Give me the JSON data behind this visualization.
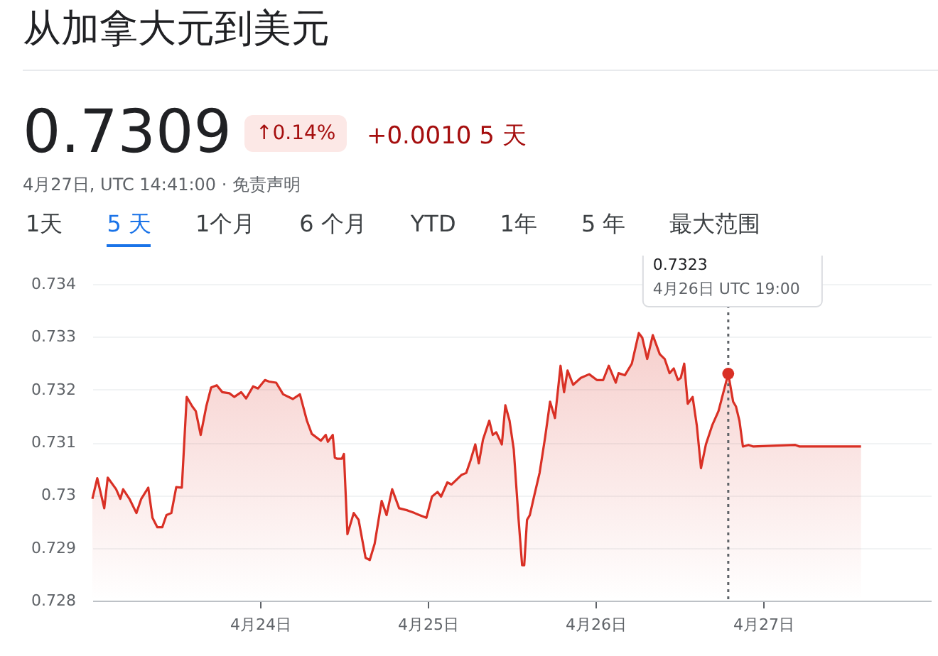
{
  "chart_data": {
    "type": "area",
    "title": "从加拿大元到美元",
    "x": [
      "--04-23T00:00",
      "--04-23T00:42",
      "--04-23T01:42",
      "--04-23T02:12",
      "--04-23T03:24",
      "--04-23T04:00",
      "--04-23T04:24",
      "--04-23T05:18",
      "--04-23T06:18",
      "--04-23T07:00",
      "--04-23T08:00",
      "--04-23T08:36",
      "--04-23T09:18",
      "--04-23T10:00",
      "--04-23T10:36",
      "--04-23T11:18",
      "--04-23T12:00",
      "--04-23T12:48",
      "--04-23T13:30",
      "--04-23T14:18",
      "--04-23T14:48",
      "--04-23T15:30",
      "--04-23T16:18",
      "--04-23T17:00",
      "--04-23T17:48",
      "--04-23T18:36",
      "--04-23T19:36",
      "--04-23T20:18",
      "--04-23T21:18",
      "--04-23T22:00",
      "--04-23T23:00",
      "--04-23T23:42",
      "--04-24T00:42",
      "--04-24T01:18",
      "--04-24T02:18",
      "--04-24T03:18",
      "--04-24T04:42",
      "--04-24T05:42",
      "--04-24T06:42",
      "--04-24T07:24",
      "--04-24T08:42",
      "--04-24T09:24",
      "--04-24T09:42",
      "--04-24T10:24",
      "--04-24T10:42",
      "--04-24T11:00",
      "--04-24T11:42",
      "--04-24T12:00",
      "--04-24T12:30",
      "--04-24T13:24",
      "--04-24T14:06",
      "--04-24T15:06",
      "--04-24T15:42",
      "--04-24T16:24",
      "--04-24T17:24",
      "--04-24T18:06",
      "--04-24T18:54",
      "--04-24T19:54",
      "--04-24T21:06",
      "--04-24T22:06",
      "--04-24T22:48",
      "--04-24T23:48",
      "--04-25T00:36",
      "--04-25T01:24",
      "--04-25T01:54",
      "--04-25T02:48",
      "--04-25T03:24",
      "--04-25T04:06",
      "--04-25T04:48",
      "--04-25T05:30",
      "--04-25T06:06",
      "--04-25T06:48",
      "--04-25T07:18",
      "--04-25T07:54",
      "--04-25T08:48",
      "--04-25T09:18",
      "--04-25T09:48",
      "--04-25T10:36",
      "--04-25T11:06",
      "--04-25T11:42",
      "--04-25T12:18",
      "--04-25T13:00",
      "--04-25T13:30",
      "--04-25T13:48",
      "--04-25T14:12",
      "--04-25T14:36",
      "--04-25T15:12",
      "--04-25T16:00",
      "--04-25T16:48",
      "--04-25T17:30",
      "--04-25T18:12",
      "--04-25T19:00",
      "--04-25T19:30",
      "--04-25T20:00",
      "--04-25T20:48",
      "--04-25T21:54",
      "--04-25T23:06",
      "--04-26T00:12",
      "--04-26T01:06",
      "--04-26T01:54",
      "--04-26T02:54",
      "--04-26T03:18",
      "--04-26T04:12",
      "--04-26T05:12",
      "--04-26T06:12",
      "--04-26T06:42",
      "--04-26T07:24",
      "--04-26T08:12",
      "--04-26T09:12",
      "--04-26T09:54",
      "--04-26T10:36",
      "--04-26T11:12",
      "--04-26T11:48",
      "--04-26T12:12",
      "--04-26T12:42",
      "--04-26T13:12",
      "--04-26T13:54",
      "--04-26T14:30",
      "--04-26T15:06",
      "--04-26T15:48",
      "--04-26T16:42",
      "--04-26T17:36",
      "--04-26T19:00",
      "--04-26T19:42",
      "--04-26T20:06",
      "--04-26T20:36",
      "--04-26T21:06",
      "--04-26T21:54",
      "--04-26T22:36",
      "--04-27T04:36",
      "--04-27T05:12",
      "--04-27T14:00"
    ],
    "series": [
      {
        "color": "#d93025",
        "values": [
          0.72993,
          0.73032,
          0.72975,
          0.73033,
          0.73011,
          0.72993,
          0.73011,
          0.72993,
          0.72966,
          0.72993,
          0.73014,
          0.72957,
          0.72939,
          0.72939,
          0.72962,
          0.72966,
          0.73015,
          0.73014,
          0.73186,
          0.73168,
          0.73159,
          0.73114,
          0.73168,
          0.73204,
          0.73208,
          0.73195,
          0.73193,
          0.73186,
          0.73195,
          0.73183,
          0.73206,
          0.73202,
          0.73218,
          0.73215,
          0.73213,
          0.73191,
          0.73182,
          0.73191,
          0.73141,
          0.73116,
          0.73103,
          0.73114,
          0.73101,
          0.73114,
          0.73071,
          0.73069,
          0.73069,
          0.73078,
          0.72926,
          0.72966,
          0.72953,
          0.72881,
          0.72877,
          0.72908,
          0.72989,
          0.72962,
          0.73011,
          0.72975,
          0.72971,
          0.72966,
          0.72962,
          0.72957,
          0.72997,
          0.73006,
          0.72997,
          0.73024,
          0.7302,
          0.73029,
          0.73038,
          0.73042,
          0.73065,
          0.73096,
          0.7306,
          0.73105,
          0.73141,
          0.73114,
          0.73119,
          0.73096,
          0.7317,
          0.73141,
          0.73087,
          0.72953,
          0.72867,
          0.72867,
          0.72953,
          0.72962,
          0.72997,
          0.73042,
          0.7311,
          0.73177,
          0.73146,
          0.73245,
          0.73195,
          0.73236,
          0.73209,
          0.73222,
          0.73229,
          0.73218,
          0.73218,
          0.73245,
          0.73213,
          0.73231,
          0.73227,
          0.73249,
          0.73307,
          0.73298,
          0.73258,
          0.73303,
          0.73267,
          0.73258,
          0.73231,
          0.7324,
          0.73218,
          0.73222,
          0.73249,
          0.73173,
          0.73186,
          0.73132,
          0.73051,
          0.73096,
          0.73132,
          0.73159,
          0.7323,
          0.73177,
          0.73168,
          0.73141,
          0.73092,
          0.73095,
          0.73092,
          0.73095,
          0.73092,
          0.73092
        ]
      }
    ],
    "xlim": [
      "--04-23T00:00",
      "--04-28T00:00"
    ],
    "xticks": [
      {
        "value": "--04-24",
        "label": "4月24日"
      },
      {
        "value": "--04-25",
        "label": "4月25日"
      },
      {
        "value": "--04-26",
        "label": "4月26日"
      },
      {
        "value": "--04-27",
        "label": "4月27日"
      }
    ],
    "ylim": [
      0.728,
      0.734
    ],
    "yticks": [
      0.728,
      0.729,
      0.73,
      0.731,
      0.732,
      0.733,
      0.734
    ],
    "grid": "y",
    "ref_lines": [
      {
        "axis": "x",
        "value": "--04-26T19:00",
        "label": "4月26日 UTC 19:00",
        "color": "#5f6368",
        "line_style": "dotted"
      }
    ],
    "annotations": [
      "0.7323",
      "0.7309",
      "↑0.14%",
      "+0.0010 5 天",
      "4月27日, UTC 14:41:00 · 免责声明",
      "1天",
      "5 天",
      "1个月",
      "6 个月",
      "YTD",
      "1年",
      "5 年",
      "最大范围"
    ]
  }
}
